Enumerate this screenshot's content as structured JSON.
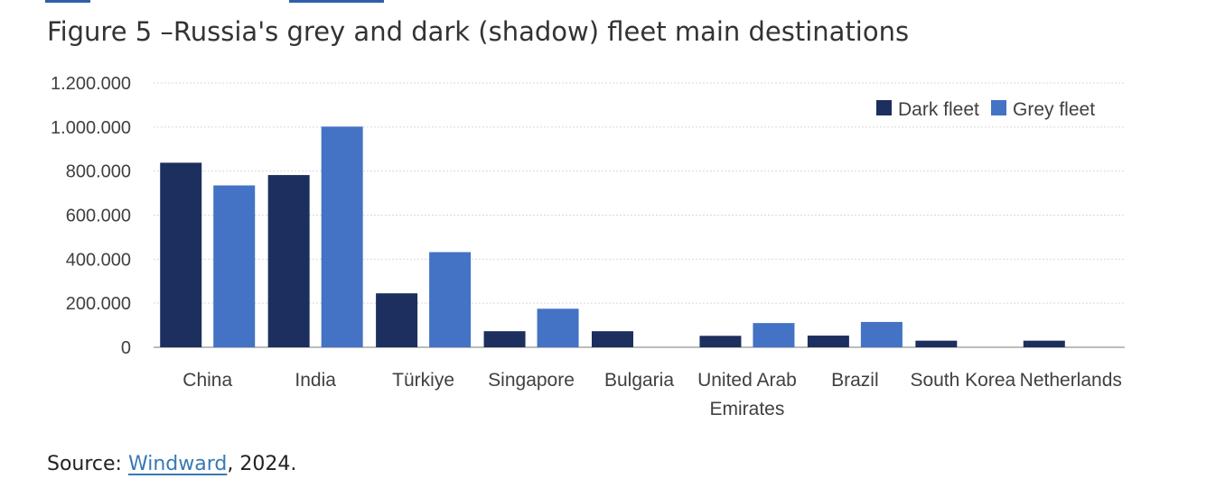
{
  "figure_title": "Figure 5 –Russia's grey and dark (shadow) fleet main destinations",
  "source": {
    "prefix": "Source: ",
    "link_text": "Windward",
    "suffix": ", 2024."
  },
  "colors": {
    "dark": "#1c2f5e",
    "grey": "#4472c4",
    "grid": "#d9d9d9",
    "axis": "#a6a6a6",
    "text": "#404040"
  },
  "chart_data": {
    "type": "bar",
    "categories": [
      [
        "China"
      ],
      [
        "India"
      ],
      [
        "Türkiye"
      ],
      [
        "Singapore"
      ],
      [
        "Bulgaria"
      ],
      [
        "United Arab",
        "Emirates"
      ],
      [
        "Brazil"
      ],
      [
        "South Korea"
      ],
      [
        "Netherlands"
      ]
    ],
    "series": [
      {
        "name": "Dark fleet",
        "color": "#1c2f5e",
        "values": [
          838000,
          782000,
          245000,
          73000,
          73000,
          52000,
          53000,
          30000,
          30000
        ]
      },
      {
        "name": "Grey fleet",
        "color": "#4472c4",
        "values": [
          735000,
          1002000,
          432000,
          175000,
          0,
          110000,
          115000,
          0,
          0
        ]
      }
    ],
    "yticks": [
      "0",
      "200.000",
      "400.000",
      "600.000",
      "800.000",
      "1.000.000",
      "1.200.000"
    ],
    "ytick_values": [
      0,
      200000,
      400000,
      600000,
      800000,
      1000000,
      1200000
    ],
    "ylim": [
      0,
      1200000
    ],
    "grid": true,
    "legend_position": "top-right"
  }
}
